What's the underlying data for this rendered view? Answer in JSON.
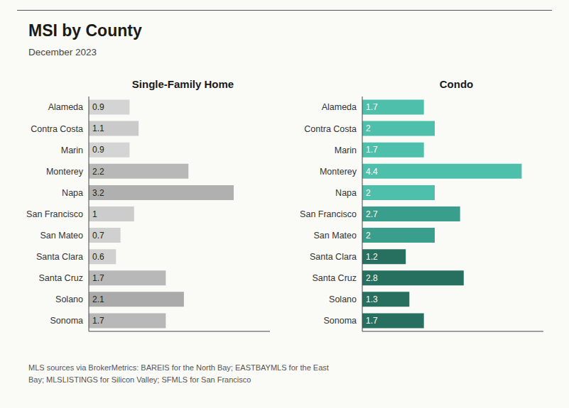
{
  "title": "MSI by County",
  "subtitle": "December 2023",
  "annotations": [
    "MLS sources via BrokerMetrics: BAREIS for the North Bay; EASTBAYMLS for the East",
    "Bay; MLSLISTINGS for Silicon Valley; SFMLS for San Francisco"
  ],
  "chart_data": [
    {
      "type": "bar",
      "orientation": "horizontal",
      "title": "Single-Family Home",
      "categories": [
        "Alameda",
        "Contra Costa",
        "Marin",
        "Monterey",
        "Napa",
        "San Francisco",
        "San Mateo",
        "Santa Clara",
        "Santa Cruz",
        "Solano",
        "Sonoma"
      ],
      "values": [
        0.9,
        1.1,
        0.9,
        2.2,
        3.2,
        1.0,
        0.7,
        0.6,
        1.7,
        2.1,
        1.7
      ],
      "colors": [
        "#d4d4d4",
        "#cacaca",
        "#d4d4d4",
        "#b8b8b8",
        "#b0b0b0",
        "#cccccc",
        "#d0d0d0",
        "#d0d0d0",
        "#b8b8b8",
        "#aaaaaa",
        "#b8b8b8"
      ],
      "xlim": [
        0,
        4.0
      ],
      "data_labels": true,
      "tick_labels": "y",
      "grid": false
    },
    {
      "type": "bar",
      "orientation": "horizontal",
      "title": "Condo",
      "categories": [
        "Alameda",
        "Contra Costa",
        "Marin",
        "Monterey",
        "Napa",
        "San Francisco",
        "San Mateo",
        "Santa Clara",
        "Santa Cruz",
        "Solano",
        "Sonoma"
      ],
      "values": [
        1.7,
        2.0,
        1.7,
        4.4,
        2.0,
        2.7,
        2.0,
        1.2,
        2.8,
        1.3,
        1.7
      ],
      "colors": [
        "#4dbfaa",
        "#4dbfaa",
        "#4dbfaa",
        "#4dbfaa",
        "#4dbfaa",
        "#3a9e8c",
        "#3a9e8c",
        "#276f5f",
        "#276f5f",
        "#276f5f",
        "#276f5f"
      ],
      "xlim": [
        0,
        5.0
      ],
      "data_labels": true,
      "tick_labels": "y",
      "grid": false
    }
  ]
}
